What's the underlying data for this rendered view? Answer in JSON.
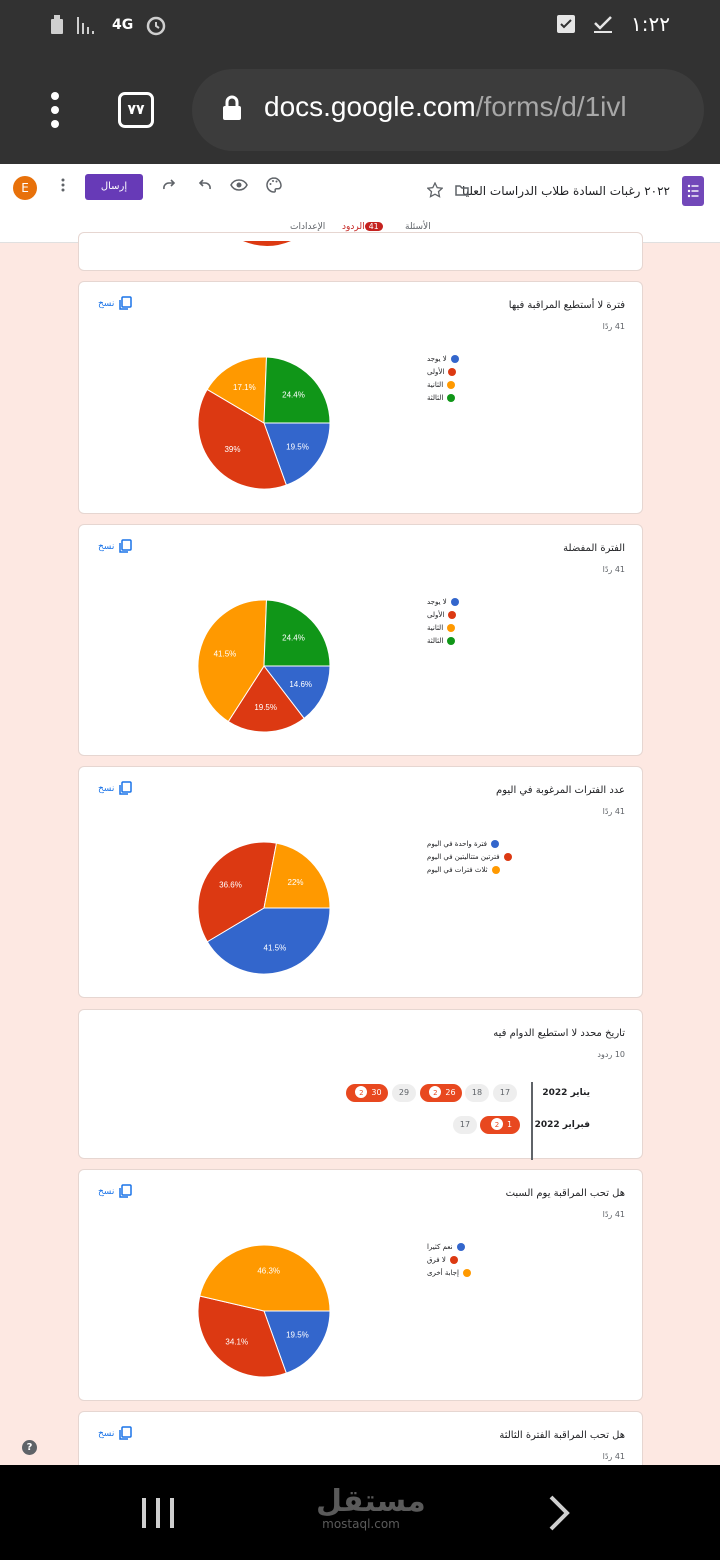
{
  "status_bar": {
    "network": "4G",
    "time": "١:٢٢"
  },
  "browser": {
    "url_domain": "docs.google.com",
    "url_path": "/forms/d/1ivl",
    "tab_count": "٧٧"
  },
  "form_header": {
    "title": "٢٠٢٢ رغبات السادة طلاب الدراسات العليا",
    "send_label": "إرسال",
    "avatar_letter": "E",
    "tabs": {
      "questions": "الأسئلة",
      "responses": "الردود",
      "responses_count": "41",
      "settings": "الإعدادات"
    }
  },
  "cards": [
    {
      "title": "فترة لا أستطيع المراقبة فيها",
      "subtitle": "41 ردًا",
      "copy_label": "نسخ",
      "chart_data": {
        "type": "pie",
        "labels": [
          "لا يوجد",
          "الأولى",
          "الثانية",
          "الثالثة"
        ],
        "values": [
          19.5,
          39,
          17.1,
          24.4
        ],
        "value_labels": [
          "19.5%",
          "39%",
          "17.1%",
          "24.4%"
        ],
        "colors": [
          "#3366cc",
          "#dc3912",
          "#ff9900",
          "#109618"
        ]
      }
    },
    {
      "title": "الفترة المفضلة",
      "subtitle": "41 ردًا",
      "copy_label": "نسخ",
      "chart_data": {
        "type": "pie",
        "labels": [
          "لا يوجد",
          "الأولى",
          "الثانية",
          "الثالثة"
        ],
        "values": [
          14.6,
          19.5,
          41.5,
          24.4
        ],
        "value_labels": [
          "14.6%",
          "19.5%",
          "41.5%",
          "24.4%"
        ],
        "colors": [
          "#3366cc",
          "#dc3912",
          "#ff9900",
          "#109618"
        ]
      }
    },
    {
      "title": "عدد الفترات المرغوبة في اليوم",
      "subtitle": "41 ردًا",
      "copy_label": "نسخ",
      "chart_data": {
        "type": "pie",
        "labels": [
          "فترة واحدة في اليوم",
          "فترتين متتاليتين في اليوم",
          "ثلاث فترات في اليوم"
        ],
        "values": [
          41.5,
          36.6,
          22
        ],
        "value_labels": [
          "41.5%",
          "36.6%",
          "22%"
        ],
        "colors": [
          "#3366cc",
          "#dc3912",
          "#ff9900"
        ]
      }
    },
    {
      "title": "هل تحب المراقبة يوم السبت",
      "subtitle": "41 ردًا",
      "copy_label": "نسخ",
      "chart_data": {
        "type": "pie",
        "labels": [
          "نعم كثيرا",
          "لا فرق",
          "إجابة أخرى"
        ],
        "values": [
          19.5,
          34.1,
          46.3
        ],
        "value_labels": [
          "19.5%",
          "34.1%",
          "46.3%"
        ],
        "colors": [
          "#3366cc",
          "#dc3912",
          "#ff9900"
        ]
      }
    }
  ],
  "date_card": {
    "title": "تاريخ محدد لا استطيع الدوام فيه",
    "subtitle": "10 ردود",
    "rows": [
      {
        "month": "يناير 2022",
        "days": [
          {
            "day": "17",
            "count": null
          },
          {
            "day": "18",
            "count": null
          },
          {
            "day": "26",
            "count": "2"
          },
          {
            "day": "29",
            "count": null
          },
          {
            "day": "30",
            "count": "2"
          }
        ]
      },
      {
        "month": "فبراير 2022",
        "days": [
          {
            "day": "1",
            "count": "2"
          },
          {
            "day": "17",
            "count": null
          }
        ]
      }
    ]
  },
  "last_card": {
    "title": "هل تحب المراقبة الفترة الثالثة",
    "subtitle": "41 ردًا",
    "copy_label": "نسخ"
  },
  "navbar": {
    "watermark_logo": "مستقل",
    "watermark_site": "mostaql.com"
  },
  "help_label": "?"
}
